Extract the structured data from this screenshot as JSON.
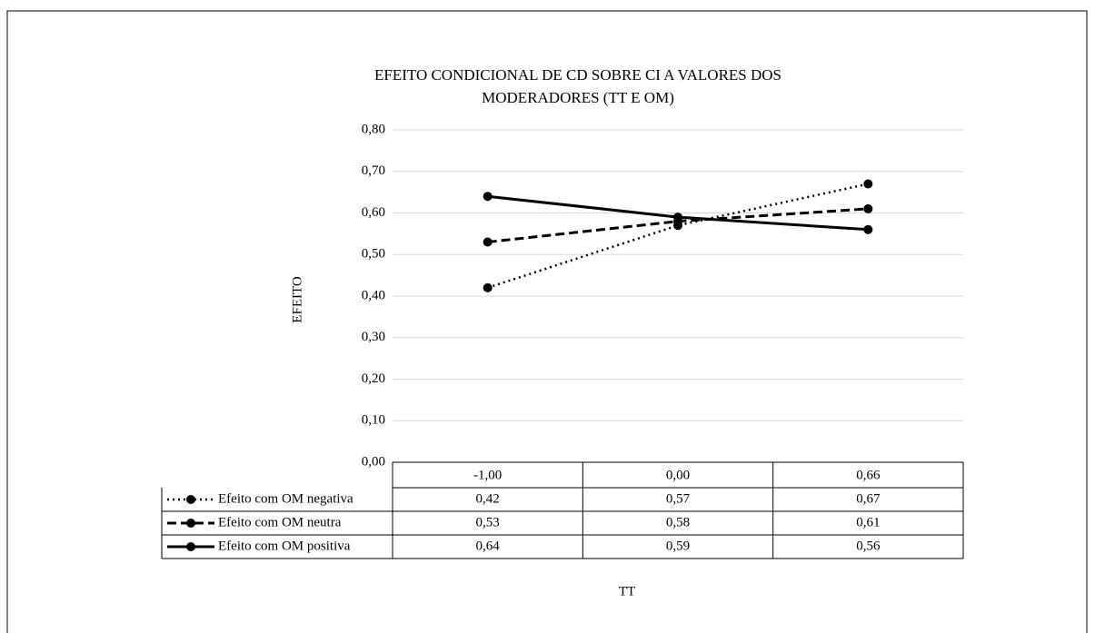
{
  "chart_data": {
    "type": "line",
    "title": [
      "EFEITO CONDICIONAL  DE CD SOBRE CI A VALORES  DOS",
      "MODERADORES  (TT E OM)"
    ],
    "y_label": "EFEITO",
    "x_label": "TT",
    "categories": [
      "-1,00",
      "0,00",
      "0,66"
    ],
    "series": [
      {
        "name": "Efeito com OM negativa",
        "color": "#000000",
        "dash": "dotted",
        "values": [
          0.42,
          0.57,
          0.67
        ],
        "value_labels": [
          "0,42",
          "0,57",
          "0,67"
        ]
      },
      {
        "name": "Efeito com OM neutra",
        "color": "#000000",
        "dash": "dashed",
        "values": [
          0.53,
          0.58,
          0.61
        ],
        "value_labels": [
          "0,53",
          "0,58",
          "0,61"
        ]
      },
      {
        "name": "Efeito com OM positiva",
        "color": "#000000",
        "dash": "solid",
        "values": [
          0.64,
          0.59,
          0.56
        ],
        "value_labels": [
          "0,64",
          "0,59",
          "0,56"
        ]
      }
    ],
    "ylim": [
      0,
      0.8
    ],
    "yticks": [
      {
        "value": 0,
        "label": "0,00"
      },
      {
        "value": 0.1,
        "label": "0,10"
      },
      {
        "value": 0.2,
        "label": "0,20"
      },
      {
        "value": 0.3,
        "label": "0,30"
      },
      {
        "value": 0.4,
        "label": "0,40"
      },
      {
        "value": 0.5,
        "label": "0,50"
      },
      {
        "value": 0.6,
        "label": "0,60"
      },
      {
        "value": 0.7,
        "label": "0,70"
      },
      {
        "value": 0.8,
        "label": "0,80"
      }
    ],
    "grid": true,
    "data_table": true
  }
}
